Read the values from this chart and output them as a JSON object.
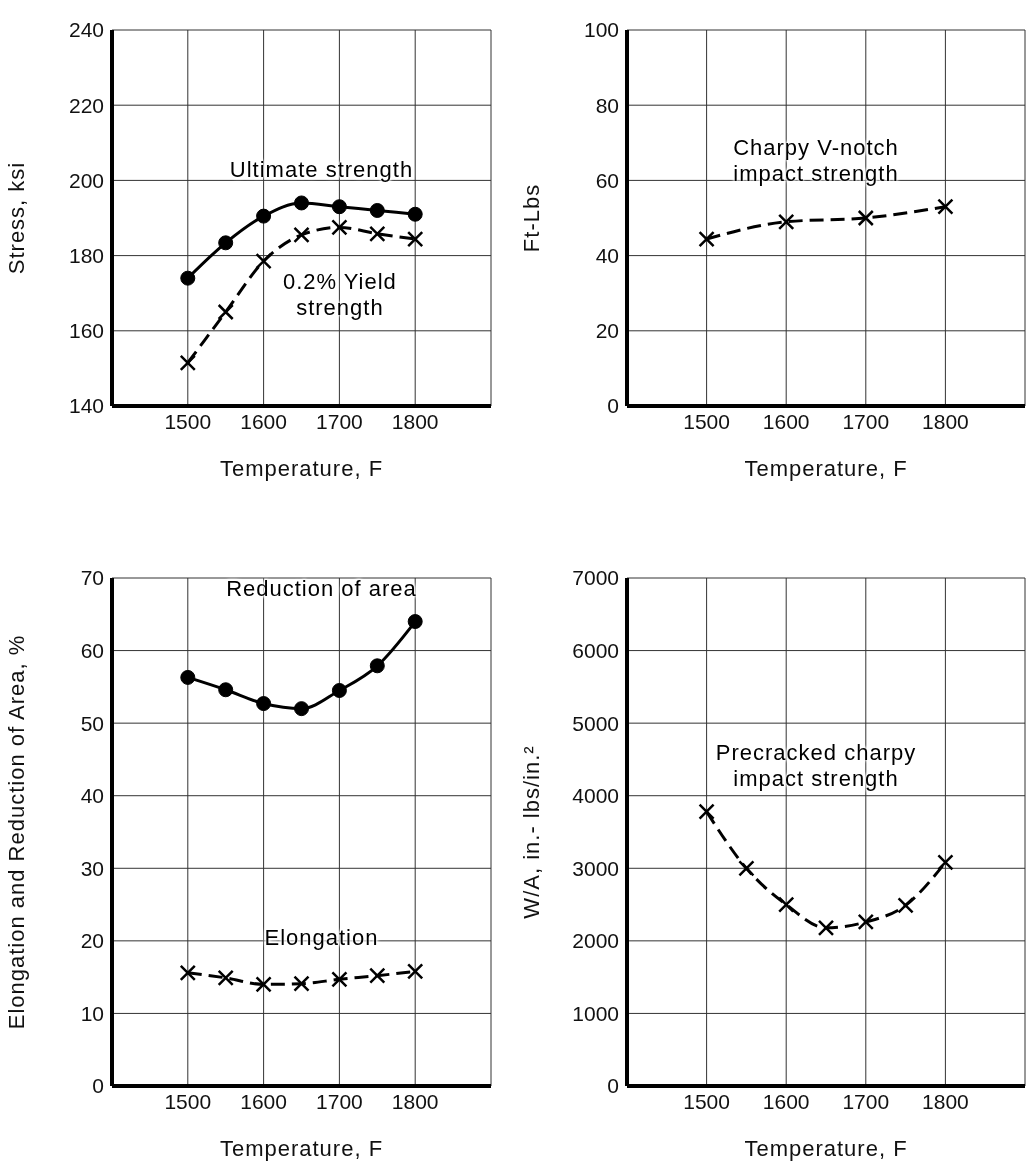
{
  "chart_data": [
    {
      "type": "line",
      "xlabel": "Temperature, F",
      "ylabel": "Stress, ksi",
      "x": [
        1500,
        1550,
        1600,
        1650,
        1700,
        1750,
        1800
      ],
      "xlim": [
        1400,
        1900
      ],
      "xticks": [
        1500,
        1600,
        1700,
        1800
      ],
      "ylim": [
        140,
        240
      ],
      "yticks": [
        140,
        160,
        180,
        200,
        220,
        240
      ],
      "grid": true,
      "series": [
        {
          "name": "Ultimate strength",
          "color": "#000000",
          "marker": "circle",
          "line_style": "solid",
          "values": [
            174,
            183.4,
            190.5,
            194,
            193,
            192,
            191
          ]
        },
        {
          "name": "0.2% Yield strength",
          "color": "#000000",
          "marker": "cross",
          "line_style": "dashed",
          "values": [
            151.5,
            165,
            178.5,
            185.5,
            187.5,
            185.8,
            184.4
          ]
        }
      ]
    },
    {
      "type": "line",
      "xlabel": "Temperature, F",
      "ylabel": "Ft-Lbs",
      "x": [
        1500,
        1600,
        1700,
        1800
      ],
      "xlim": [
        1400,
        1900
      ],
      "xticks": [
        1500,
        1600,
        1700,
        1800
      ],
      "ylim": [
        0,
        100
      ],
      "yticks": [
        0,
        20,
        40,
        60,
        80,
        100
      ],
      "grid": true,
      "series": [
        {
          "name": "Charpy V-notch impact strength",
          "color": "#000000",
          "marker": "cross",
          "line_style": "dashed",
          "values": [
            44.4,
            49,
            50,
            53
          ]
        }
      ]
    },
    {
      "type": "line",
      "xlabel": "Temperature, F",
      "ylabel": "Elongation and Reduction of Area, %",
      "x": [
        1500,
        1550,
        1600,
        1650,
        1700,
        1750,
        1800
      ],
      "xlim": [
        1400,
        1900
      ],
      "xticks": [
        1500,
        1600,
        1700,
        1800
      ],
      "ylim": [
        0,
        70
      ],
      "yticks": [
        0,
        10,
        20,
        30,
        40,
        50,
        60,
        70
      ],
      "grid": true,
      "series": [
        {
          "name": "Reduction of area",
          "color": "#000000",
          "marker": "circle",
          "line_style": "solid",
          "values": [
            56.3,
            54.6,
            52.7,
            52,
            54.5,
            57.9,
            64
          ]
        },
        {
          "name": "Elongation",
          "color": "#000000",
          "marker": "cross",
          "line_style": "dashed",
          "values": [
            15.6,
            14.9,
            14,
            14.1,
            14.7,
            15.2,
            15.8
          ]
        }
      ]
    },
    {
      "type": "line",
      "xlabel": "Temperature, F",
      "ylabel": "W/A, in.- lbs/in.²",
      "x": [
        1500,
        1550,
        1600,
        1650,
        1700,
        1750,
        1800
      ],
      "xlim": [
        1400,
        1900
      ],
      "xticks": [
        1500,
        1600,
        1700,
        1800
      ],
      "ylim": [
        0,
        7000
      ],
      "yticks": [
        0,
        1000,
        2000,
        3000,
        4000,
        5000,
        6000,
        7000
      ],
      "grid": true,
      "series": [
        {
          "name": "Precracked charpy impact strength",
          "color": "#000000",
          "marker": "cross",
          "line_style": "dashed",
          "values": [
            3780,
            3000,
            2500,
            2180,
            2260,
            2490,
            3080
          ]
        }
      ]
    }
  ]
}
